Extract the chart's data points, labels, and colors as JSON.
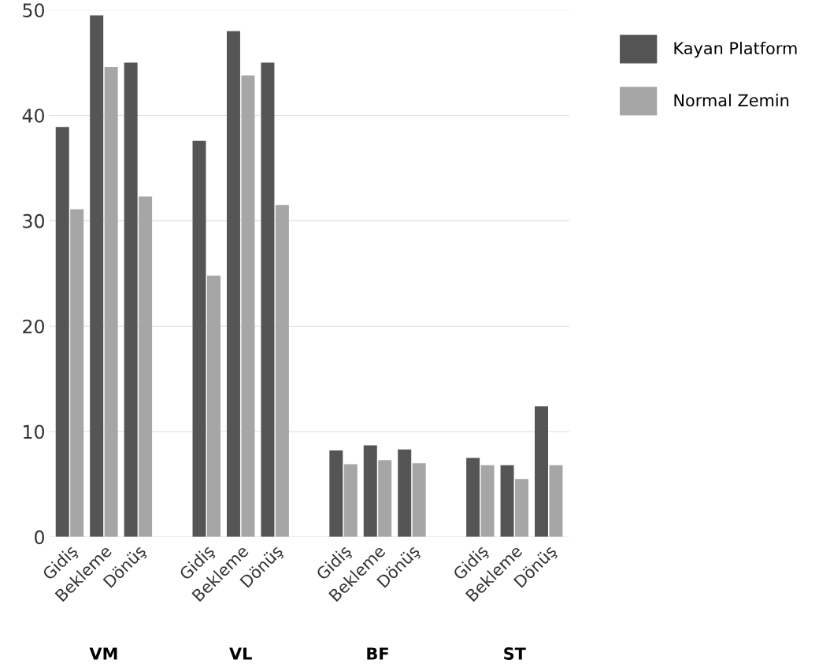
{
  "chart_data": {
    "type": "bar",
    "categories": [
      "Gidiş",
      "Bekleme",
      "Dönüş",
      null,
      "Gidiş",
      "Bekleme",
      "Dönüş",
      null,
      "Gidiş",
      "Bekleme",
      "Dönüş",
      null,
      "Gidiş",
      "Bekleme",
      "Dönüş"
    ],
    "series": [
      {
        "name": "Kayan Platform",
        "color": "#555555",
        "values": [
          38.9,
          49.5,
          45.0,
          null,
          37.6,
          48.0,
          45.0,
          null,
          8.2,
          8.7,
          8.3,
          null,
          7.5,
          6.8,
          12.4
        ]
      },
      {
        "name": "Normal Zemin",
        "color": "#a6a6a6",
        "values": [
          31.1,
          44.6,
          32.3,
          null,
          24.8,
          43.8,
          31.5,
          null,
          6.9,
          7.3,
          7.0,
          null,
          6.8,
          5.5,
          6.8
        ]
      }
    ],
    "annotations": [
      "VM",
      "VL",
      "BF",
      "ST"
    ],
    "ylim": [
      0,
      50
    ],
    "yticks": [
      0,
      10,
      20,
      30,
      40,
      50
    ],
    "grid": "y",
    "legend": "top right"
  }
}
